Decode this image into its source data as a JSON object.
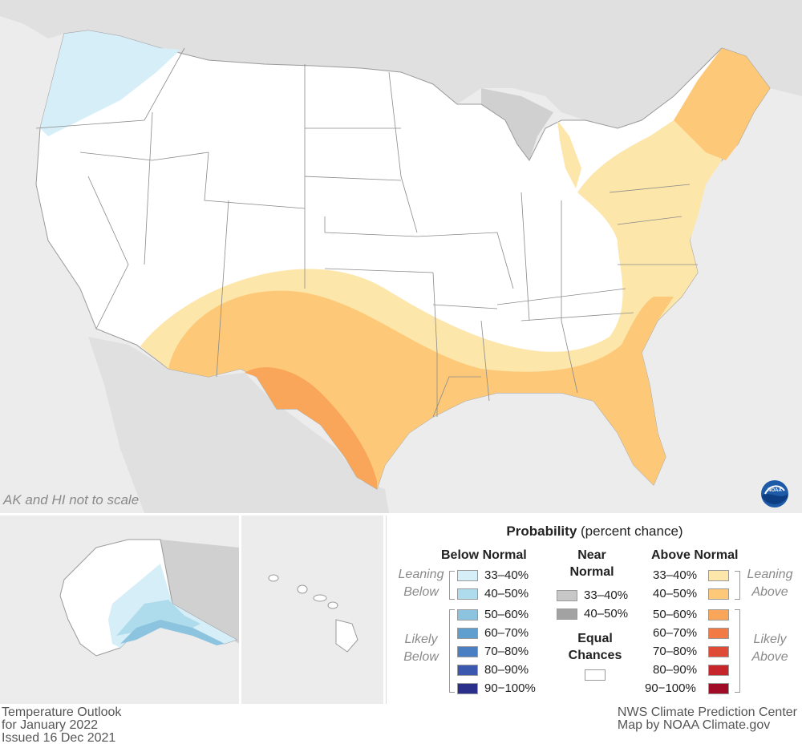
{
  "map": {
    "note": "AK and HI not to scale",
    "logo_icon": "noaa-logo-icon"
  },
  "legend": {
    "title_bold": "Probability",
    "title_rest": " (percent chance)",
    "below_header": "Below Normal",
    "near_header_line1": "Near",
    "near_header_line2": "Normal",
    "above_header": "Above Normal",
    "leaning_below_1": "Leaning",
    "leaning_below_2": "Below",
    "likely_below_1": "Likely",
    "likely_below_2": "Below",
    "leaning_above_1": "Leaning",
    "leaning_above_2": "Above",
    "likely_above_1": "Likely",
    "likely_above_2": "Above",
    "equal_line1": "Equal",
    "equal_line2": "Chances",
    "below": [
      {
        "label": "33–40%",
        "color": "#d5eef8"
      },
      {
        "label": "40–50%",
        "color": "#afdcec"
      },
      {
        "label": "50–60%",
        "color": "#8cc4e0"
      },
      {
        "label": "60–70%",
        "color": "#5f9fd0"
      },
      {
        "label": "70–80%",
        "color": "#4b7fc3"
      },
      {
        "label": "80–90%",
        "color": "#3a58ae"
      },
      {
        "label": "90−100%",
        "color": "#2b2f8c"
      }
    ],
    "near": [
      {
        "label": "33–40%",
        "color": "#c7c7c7"
      },
      {
        "label": "40–50%",
        "color": "#a2a2a2"
      }
    ],
    "above": [
      {
        "label": "33–40%",
        "color": "#fde6a9"
      },
      {
        "label": "40–50%",
        "color": "#fdc978"
      },
      {
        "label": "50–60%",
        "color": "#f9a55a"
      },
      {
        "label": "60–70%",
        "color": "#f17a45"
      },
      {
        "label": "70–80%",
        "color": "#e04b35"
      },
      {
        "label": "80–90%",
        "color": "#c5252b"
      },
      {
        "label": "90−100%",
        "color": "#a00c26"
      }
    ],
    "equal_color": "#ffffff"
  },
  "footer": {
    "left_line1": "Temperature Outlook",
    "left_line2": "for January 2022",
    "left_line3": "Issued 16 Dec 2021",
    "right_line1": "NWS Climate Prediction Center",
    "right_line2": "Map by NOAA Climate.gov"
  }
}
